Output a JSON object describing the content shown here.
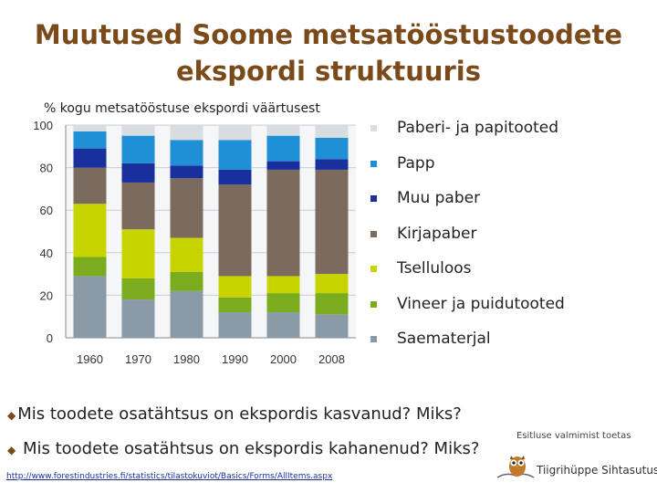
{
  "title": "Muutused Soome metsatööstustoodete ekspordi struktuuris",
  "chart_data": {
    "type": "bar",
    "stacked": true,
    "subtitle": "% kogu metsatööstuse ekspordi väärtusest",
    "categories": [
      "1960",
      "1970",
      "1980",
      "1990",
      "2000",
      "2008"
    ],
    "ylim": [
      0,
      100
    ],
    "yticks": [
      0,
      20,
      40,
      60,
      80,
      100
    ],
    "grid": true,
    "legend_position": "right",
    "series": [
      {
        "name": "Saematerjal",
        "color": "#8a9aa6",
        "values": [
          29,
          18,
          22,
          12,
          12,
          11
        ]
      },
      {
        "name": "Vineer ja puidutooted",
        "color": "#7aac1e",
        "values": [
          9,
          10,
          9,
          7,
          9,
          10
        ]
      },
      {
        "name": "Tselluloos",
        "color": "#c8d400",
        "values": [
          25,
          23,
          16,
          10,
          8,
          9
        ]
      },
      {
        "name": "Kirjapaber",
        "color": "#7b6a5e",
        "values": [
          17,
          22,
          28,
          43,
          50,
          49
        ]
      },
      {
        "name": "Muu paber",
        "color": "#1a2f9e",
        "values": [
          9,
          9,
          6,
          7,
          4,
          5
        ]
      },
      {
        "name": "Papp",
        "color": "#1f8fd6",
        "values": [
          8,
          13,
          12,
          14,
          12,
          10
        ]
      },
      {
        "name": "Paberi- ja papitooted",
        "color": "#d8dde0",
        "values": [
          3,
          5,
          7,
          7,
          5,
          6
        ]
      }
    ]
  },
  "questions": [
    "Mis toodete osatähtsus on ekspordis kasvanud? Miks?",
    "Mis toodete osatähtsus on ekspordis kahanenud? Miks?"
  ],
  "bullet_glyph": "◆",
  "source_url": "http://www.forestindustries.fi/statistics/tilastokuviot/Basics/Forms/AllItems.aspx",
  "credit": {
    "text": "Esitluse valmimist toetas",
    "name": "Tiigrihüppe Sihtasutus"
  }
}
